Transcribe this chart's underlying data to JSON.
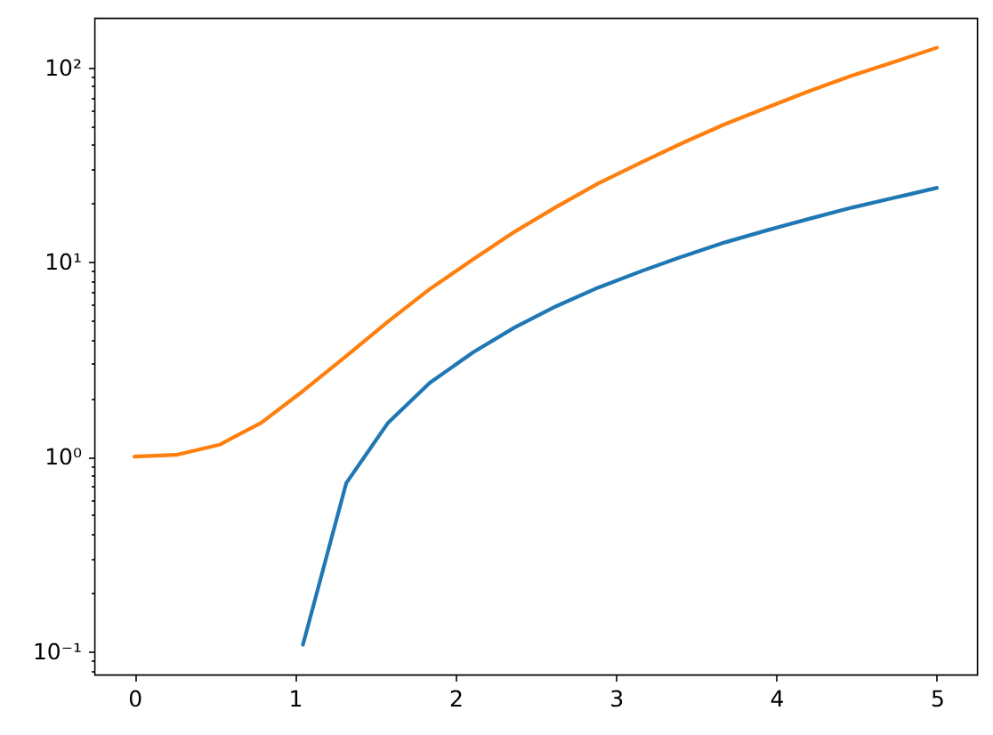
{
  "chart_data": {
    "type": "line",
    "log": true,
    "x": [
      0,
      0.26,
      0.53,
      0.79,
      1.05,
      1.32,
      1.58,
      1.84,
      2.11,
      2.37,
      2.63,
      2.89,
      3.16,
      3.42,
      3.68,
      3.95,
      4.21,
      4.47,
      4.74,
      5
    ],
    "series": [
      {
        "color": "#1f77b4",
        "values": [
          null,
          null,
          null,
          null,
          0.108,
          0.731,
          1.49,
          2.39,
          3.43,
          4.61,
          5.93,
          7.38,
          8.97,
          10.7,
          12.6,
          14.6,
          16.7,
          19.0,
          21.4,
          24.0
        ]
      },
      {
        "color": "#ff7f0e",
        "values": [
          1.0,
          1.02,
          1.15,
          1.49,
          2.17,
          3.28,
          4.94,
          7.25,
          10.3,
          14.3,
          19.2,
          25.3,
          32.5,
          41.0,
          51.0,
          62.5,
          75.7,
          90.5,
          107,
          126
        ]
      }
    ],
    "xlim": [
      -0.25,
      5.25
    ],
    "xticks": [
      0,
      1,
      2,
      3,
      4,
      5
    ],
    "ylim": [
      0.0759,
      179.5
    ],
    "yticks": [
      {
        "value": 0.08,
        "label": null
      },
      {
        "value": 0.09,
        "label": null
      },
      {
        "value": 0.1,
        "label": "10⁻¹"
      },
      {
        "value": 0.2,
        "label": null
      },
      {
        "value": 0.3,
        "label": null
      },
      {
        "value": 0.4,
        "label": null
      },
      {
        "value": 0.5,
        "label": null
      },
      {
        "value": 0.6,
        "label": null
      },
      {
        "value": 0.7,
        "label": null
      },
      {
        "value": 0.8,
        "label": null
      },
      {
        "value": 0.9,
        "label": null
      },
      {
        "value": 1,
        "label": "10⁰"
      },
      {
        "value": 2,
        "label": null
      },
      {
        "value": 3,
        "label": null
      },
      {
        "value": 4,
        "label": null
      },
      {
        "value": 5,
        "label": null
      },
      {
        "value": 6,
        "label": null
      },
      {
        "value": 7,
        "label": null
      },
      {
        "value": 8,
        "label": null
      },
      {
        "value": 9,
        "label": null
      },
      {
        "value": 10,
        "label": "10¹"
      },
      {
        "value": 20,
        "label": null
      },
      {
        "value": 30,
        "label": null
      },
      {
        "value": 40,
        "label": null
      },
      {
        "value": 50,
        "label": null
      },
      {
        "value": 60,
        "label": null
      },
      {
        "value": 70,
        "label": null
      },
      {
        "value": 80,
        "label": null
      },
      {
        "value": 90,
        "label": null
      },
      {
        "value": 100,
        "label": "10²"
      }
    ]
  }
}
